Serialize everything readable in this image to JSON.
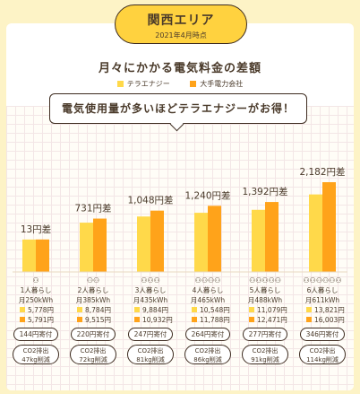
{
  "header": {
    "region": "関西エリア",
    "as_of": "2021年4月時点"
  },
  "headline": "電気使用量が多いほどテラエナジーがお得！",
  "colors": {
    "tera": "#ffd94a",
    "major": "#ffa31a",
    "accent": "#ffd23f"
  },
  "chart_data": {
    "type": "bar",
    "title": "月々にかかる電気料金の差額",
    "legend": [
      "テラエナジー",
      "大手電力会社"
    ],
    "categories": [
      "1人暮らし",
      "2人暮らし",
      "3人暮らし",
      "4人暮らし",
      "5人暮らし",
      "6人暮らし"
    ],
    "people": [
      1,
      2,
      3,
      4,
      5,
      6
    ],
    "usage": [
      "月250kWh",
      "月385kWh",
      "月435kWh",
      "月465kWh",
      "月488kWh",
      "月611kWh"
    ],
    "series": [
      {
        "name": "テラエナジー",
        "values": [
          5778,
          8784,
          9884,
          10548,
          11079,
          13821
        ]
      },
      {
        "name": "大手電力会社",
        "values": [
          5791,
          9515,
          10932,
          11788,
          12471,
          16003
        ]
      }
    ],
    "value_labels": {
      "tera": [
        "5,778円",
        "8,784円",
        "9,884円",
        "10,548円",
        "11,079円",
        "13,821円"
      ],
      "major": [
        "5,791円",
        "9,515円",
        "10,932円",
        "11,788円",
        "12,471円",
        "16,003円"
      ]
    },
    "diff_labels": [
      "13円差",
      "731円差",
      "1,048円差",
      "1,240円差",
      "1,392円差",
      "2,182円差"
    ],
    "donation": [
      "144円寄付",
      "220円寄付",
      "247円寄付",
      "264円寄付",
      "277円寄付",
      "346円寄付"
    ],
    "co2_title": "CO2排出",
    "co2": [
      "47kg削減",
      "72kg削減",
      "81kg削減",
      "86kg削減",
      "91kg削減",
      "114kg削減"
    ]
  }
}
